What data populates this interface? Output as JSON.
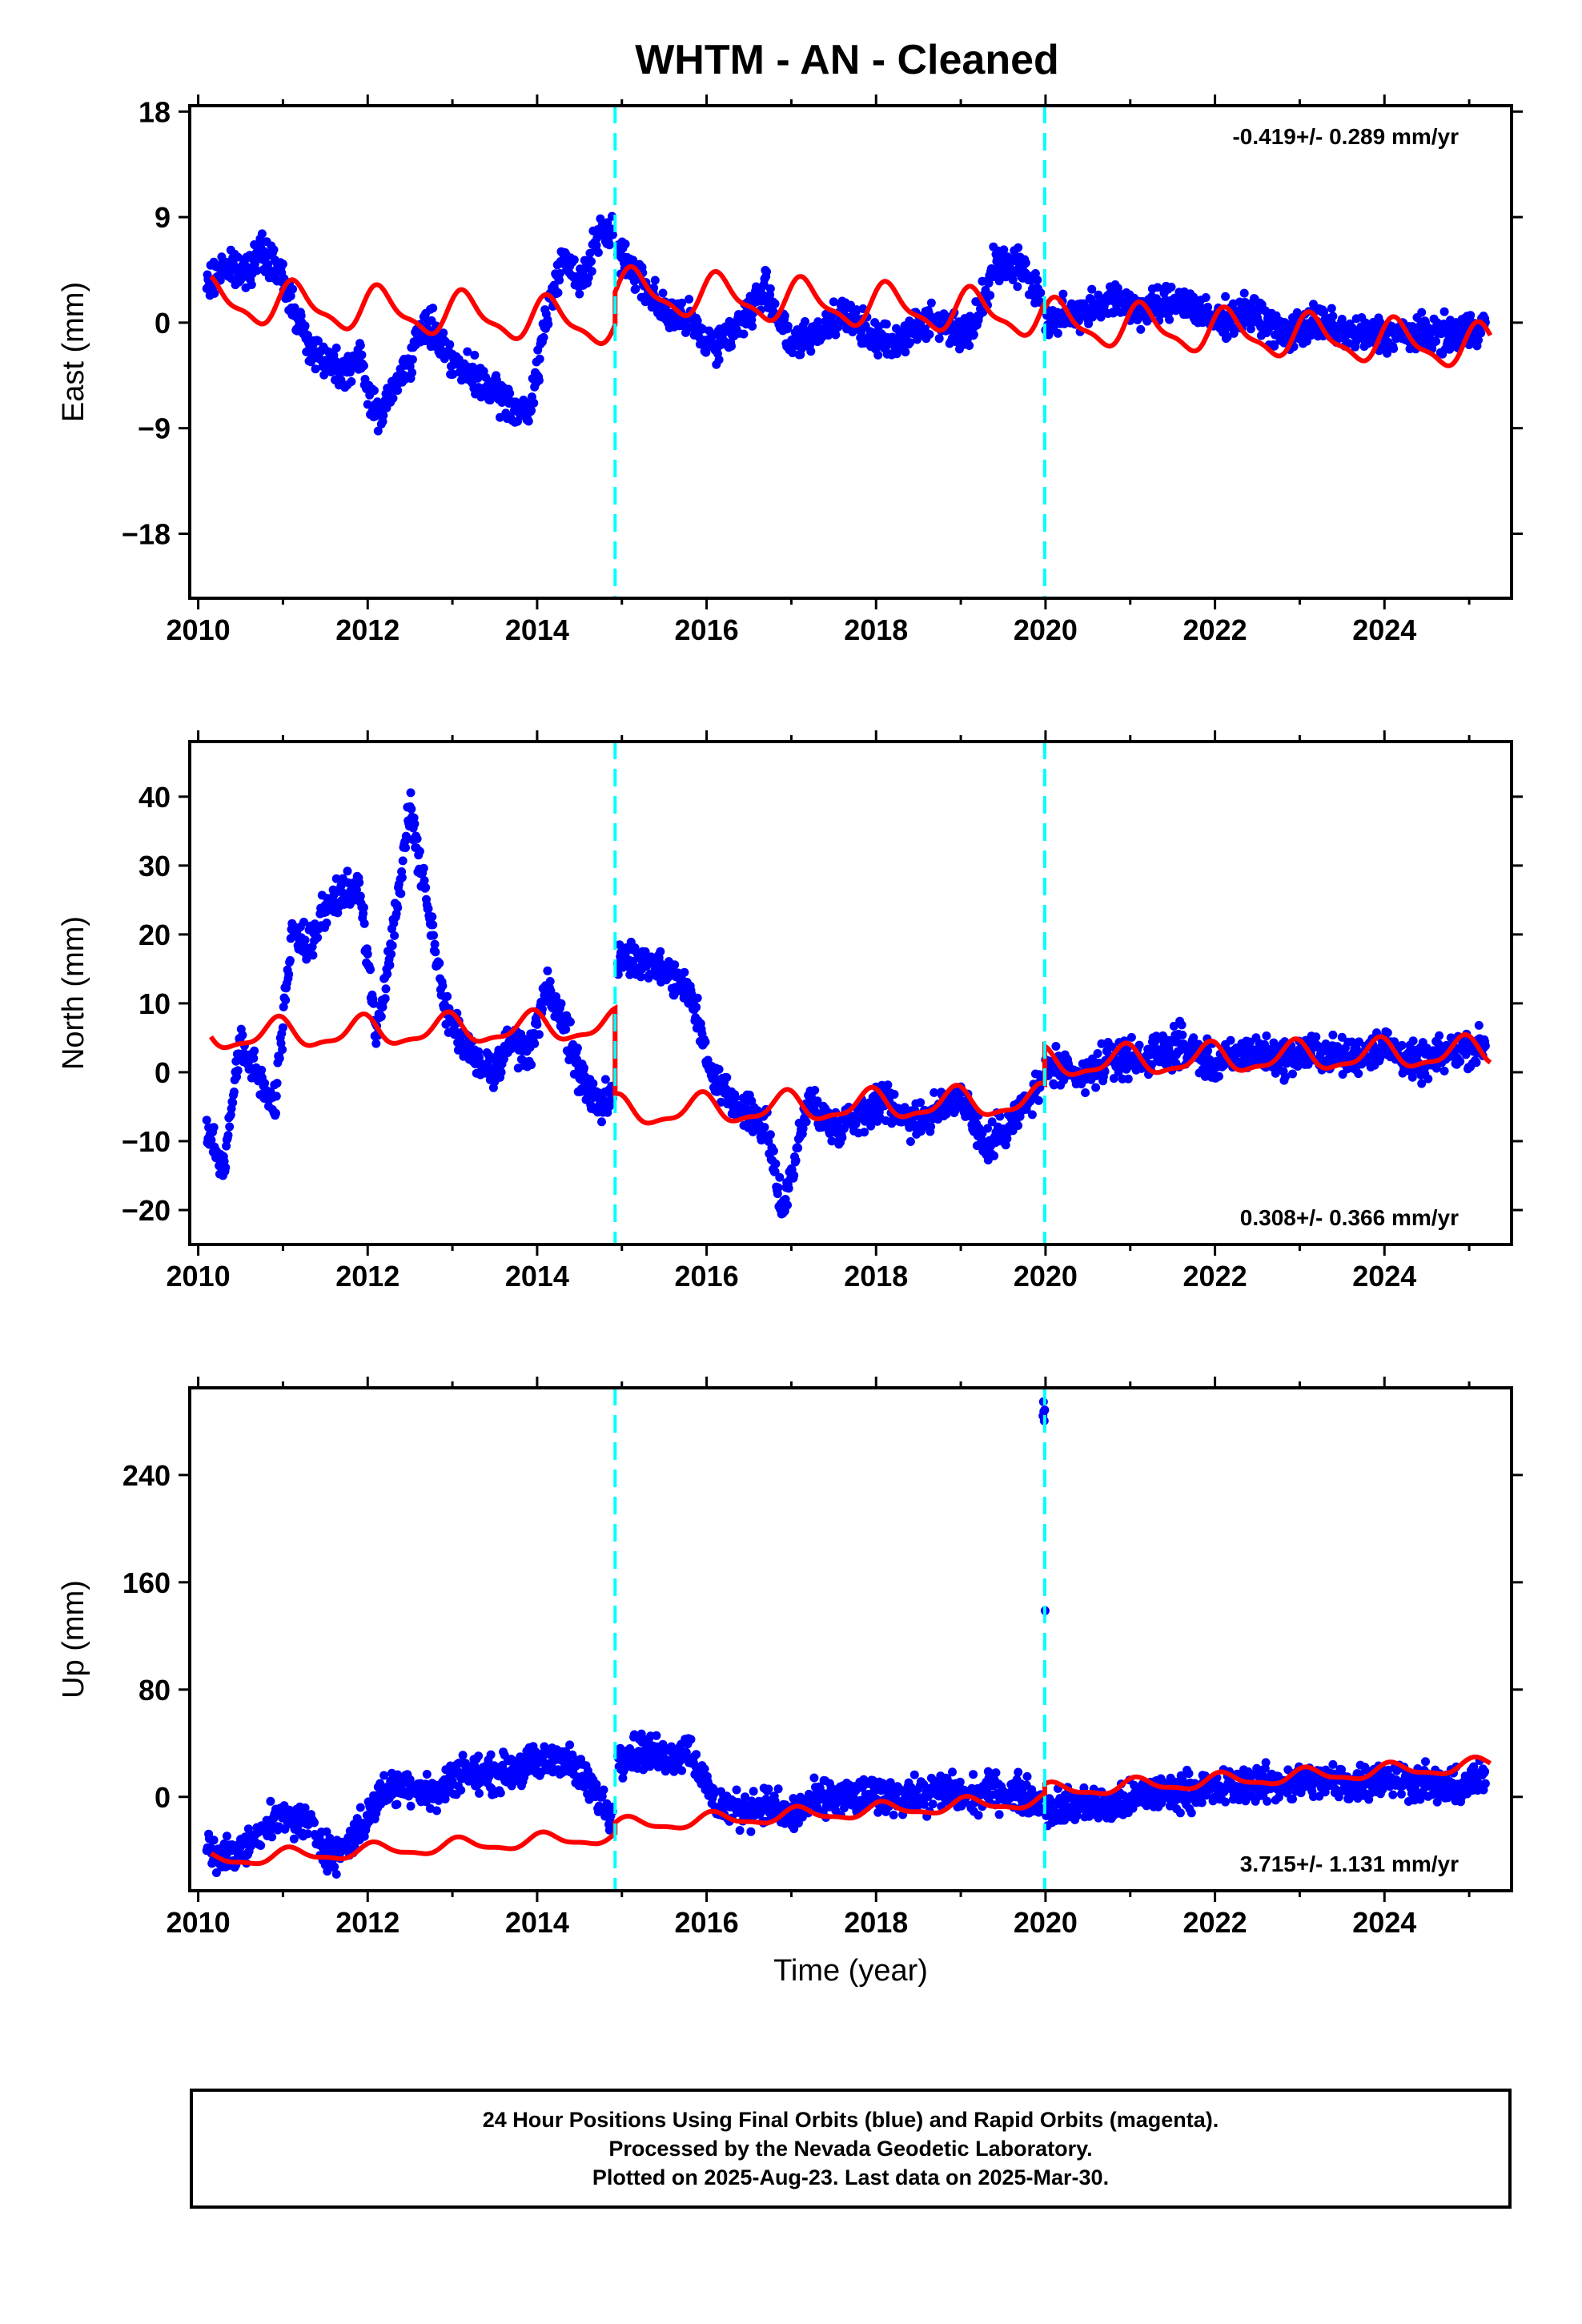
{
  "title": "WHTM  - AN - Cleaned",
  "colors": {
    "data": "#0000ff",
    "model": "#ff0000",
    "offset": "#00ffff",
    "frame": "#000000"
  },
  "footer": {
    "line1": "24 Hour Positions Using Final Orbits (blue) and Rapid Orbits (magenta).",
    "line2": "Processed by the Nevada Geodetic Laboratory.",
    "line3": "Plotted on 2025-Aug-23. Last data on 2025-Mar-30."
  },
  "chart_data": [
    {
      "type": "scatter",
      "name": "east",
      "ylabel": "East (mm)",
      "xlabel": "",
      "xlim": [
        2009.9,
        2025.5
      ],
      "ylim": [
        -23.5,
        18.5
      ],
      "yticks": [
        18,
        9,
        0,
        -9,
        -18
      ],
      "xticks": [
        2010,
        2012,
        2014,
        2016,
        2018,
        2020,
        2022,
        2024
      ],
      "rate_label": "-0.419+/- 0.289 mm/yr",
      "rate_position": "top-right",
      "offsets": [
        2014.92,
        2019.99
      ],
      "segments": [
        {
          "x": [
            2010.1,
            2010.3,
            2010.5,
            2010.7,
            2010.9,
            2011.1,
            2011.3,
            2011.5,
            2011.7,
            2011.9,
            2012.1,
            2012.3,
            2012.5,
            2012.7,
            2012.9,
            2013.1,
            2013.3,
            2013.5,
            2013.7,
            2013.9,
            2014.1,
            2014.3,
            2014.5,
            2014.7,
            2014.9
          ],
          "y": [
            3,
            5,
            4,
            6,
            5,
            2,
            -2,
            -3,
            -4,
            -3,
            -8,
            -6,
            -3,
            0,
            -2,
            -4,
            -5,
            -6,
            -7,
            -8,
            0,
            6,
            3,
            7,
            8
          ]
        },
        {
          "x": [
            2014.95,
            2015.2,
            2015.5,
            2015.8,
            2016.1,
            2016.4,
            2016.7,
            2017.0,
            2017.3,
            2017.6,
            2017.9,
            2018.2,
            2018.5,
            2018.8,
            2019.1,
            2019.4,
            2019.7,
            2019.95
          ],
          "y": [
            6,
            4,
            1,
            0,
            -2,
            0,
            3,
            -2,
            -1,
            1,
            -1,
            -2,
            0,
            0,
            -1,
            5,
            5,
            2
          ]
        },
        {
          "x": [
            2020.0,
            2020.4,
            2020.8,
            2021.2,
            2021.6,
            2022.0,
            2022.4,
            2022.8,
            2023.2,
            2023.6,
            2024.0,
            2024.4,
            2024.8,
            2025.2
          ],
          "y": [
            0,
            1,
            2,
            1,
            2,
            0,
            1,
            -1,
            0,
            -1,
            -1,
            -1,
            -1,
            0
          ]
        }
      ],
      "model": {
        "intercepts": [
          -1.2,
          1.6,
          1.1
        ],
        "trend": -0.419,
        "amplitude": 1.7,
        "phase": 0.6
      }
    },
    {
      "type": "scatter",
      "name": "north",
      "ylabel": "North (mm)",
      "xlabel": "",
      "xlim": [
        2009.9,
        2025.5
      ],
      "ylim": [
        -25,
        48
      ],
      "yticks": [
        40,
        30,
        20,
        10,
        0,
        -10,
        -20
      ],
      "xticks": [
        2010,
        2012,
        2014,
        2016,
        2018,
        2020,
        2022,
        2024
      ],
      "rate_label": "0.308+/- 0.366 mm/yr",
      "rate_position": "bottom-right",
      "offsets": [
        2014.92,
        2019.99
      ],
      "segments": [
        {
          "x": [
            2010.1,
            2010.3,
            2010.5,
            2010.7,
            2010.9,
            2011.1,
            2011.3,
            2011.5,
            2011.7,
            2011.9,
            2012.1,
            2012.3,
            2012.5,
            2012.7,
            2012.9,
            2013.1,
            2013.3,
            2013.5,
            2013.7,
            2013.9,
            2014.1,
            2014.3,
            2014.5,
            2014.7,
            2014.9
          ],
          "y": [
            -8,
            -14,
            5,
            0,
            -5,
            20,
            18,
            24,
            26,
            27,
            5,
            20,
            38,
            25,
            10,
            5,
            2,
            0,
            5,
            2,
            12,
            8,
            0,
            -5,
            -3
          ]
        },
        {
          "x": [
            2014.95,
            2015.2,
            2015.5,
            2015.8,
            2016.1,
            2016.4,
            2016.7,
            2016.9,
            2017.2,
            2017.5,
            2017.8,
            2018.1,
            2018.4,
            2018.7,
            2019.0,
            2019.3,
            2019.6,
            2019.95
          ],
          "y": [
            16,
            17,
            15,
            12,
            -2,
            -5,
            -8,
            -20,
            -4,
            -8,
            -6,
            -4,
            -7,
            -6,
            -3,
            -11,
            -7,
            -2
          ]
        },
        {
          "x": [
            2020.0,
            2020.4,
            2020.8,
            2021.2,
            2021.6,
            2022.0,
            2022.4,
            2022.8,
            2023.2,
            2023.6,
            2024.0,
            2024.4,
            2024.8,
            2025.2
          ],
          "y": [
            1,
            -1,
            2,
            2,
            4,
            1,
            3,
            2,
            3,
            2,
            4,
            1,
            3,
            4
          ]
        }
      ],
      "model": {
        "intercepts": [
          7.5,
          -5.0,
          0.5
        ],
        "trend": 0.308,
        "amplitude": 2.0,
        "phase": 2.0
      }
    },
    {
      "type": "scatter",
      "name": "up",
      "ylabel": "Up (mm)",
      "xlabel": "Time (year)",
      "xlim": [
        2009.9,
        2025.5
      ],
      "ylim": [
        -70,
        305
      ],
      "yticks": [
        240,
        160,
        80,
        0
      ],
      "xticks": [
        2010,
        2012,
        2014,
        2016,
        2018,
        2020,
        2022,
        2024
      ],
      "rate_label": "3.715+/- 1.131 mm/yr",
      "rate_position": "bottom-right",
      "offsets": [
        2014.92,
        2019.99
      ],
      "segments": [
        {
          "x": [
            2010.1,
            2010.4,
            2010.7,
            2011.0,
            2011.3,
            2011.6,
            2011.9,
            2012.2,
            2012.5,
            2012.8,
            2013.1,
            2013.4,
            2013.7,
            2014.0,
            2014.3,
            2014.6,
            2014.9
          ],
          "y": [
            -40,
            -45,
            -30,
            -15,
            -20,
            -45,
            -25,
            5,
            10,
            0,
            20,
            15,
            20,
            25,
            30,
            10,
            -15
          ]
        },
        {
          "x": [
            2014.95,
            2015.2,
            2015.5,
            2015.8,
            2016.1,
            2016.4,
            2016.7,
            2017.0,
            2017.3,
            2017.6,
            2017.9,
            2018.2,
            2018.5,
            2018.8,
            2019.1,
            2019.4,
            2019.7,
            2019.95
          ],
          "y": [
            30,
            35,
            30,
            35,
            -5,
            -10,
            -5,
            -15,
            -2,
            0,
            0,
            2,
            0,
            5,
            0,
            5,
            2,
            -5
          ]
        },
        {
          "x": [
            2019.97,
            2019.98,
            2019.99,
            2020.0,
            2020.4,
            2020.8,
            2021.2,
            2021.6,
            2022.0,
            2022.4,
            2022.8,
            2023.2,
            2023.6,
            2024.0,
            2024.4,
            2024.8,
            2025.2
          ],
          "y": [
            290,
            285,
            295,
            -10,
            -5,
            -8,
            2,
            5,
            5,
            10,
            10,
            12,
            10,
            15,
            12,
            5,
            15
          ]
        }
      ],
      "model": {
        "intercepts": [
          -20,
          -12,
          -5
        ],
        "trend": 3.715,
        "amplitude": 5.0,
        "phase": 1.0
      }
    }
  ]
}
